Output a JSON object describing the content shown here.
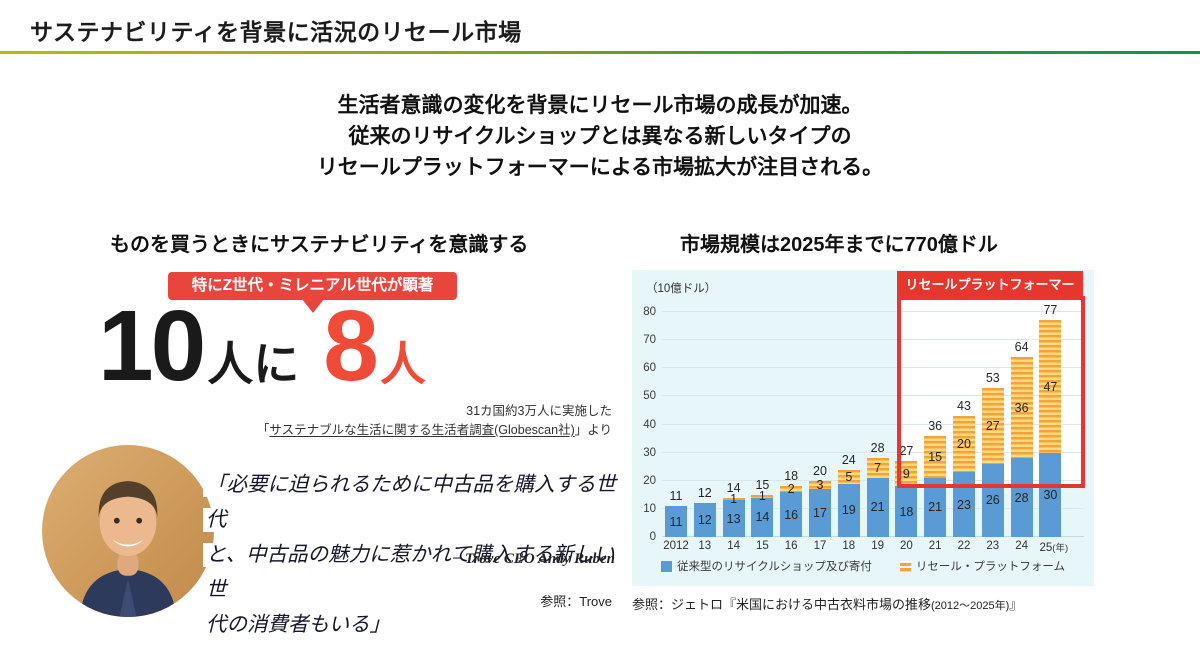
{
  "colors": {
    "accent_red": "#E8453C",
    "box_red": "#E5372E",
    "bar_blue": "#5B9BD5",
    "bar_orange": "#F2A33C",
    "chart_bg": "#E7F6F8",
    "divider_gradient_left": "#C2B70B",
    "divider_gradient_right": "#17914A"
  },
  "header": {
    "title": "サステナビリティを背景に活況のリセール市場"
  },
  "intro_lines": [
    "生活者意識の変化を背景にリセール市場の成長が加速。",
    "従来のリサイクルショップとは異なる新しいタイプの",
    "リセールプラットフォーマーによる市場拡大が注目される。"
  ],
  "left": {
    "heading": "ものを買うときにサステナビリティを意識する",
    "badge": "特にZ世代・ミレニアル世代が顕著",
    "stat": {
      "num1": "10",
      "kana1": "人に",
      "num2": "8",
      "kana2": "人"
    },
    "source_line1": "31カ国約3万人に実施した",
    "source_open": "「",
    "source_link": "サステナブルな生活に関する生活者調査(Globescan社)",
    "source_close": "」より",
    "quote_lines": [
      "「必要に迫られるために中古品を購入する世代",
      "と、中古品の魅力に惹かれて購入する新しい世",
      "代の消費者もいる」"
    ],
    "attribution": "− Trove CEO Andy Ruben",
    "reference": "参照：Trove",
    "photo_alt": "Trove CEO Andy Ruben portrait"
  },
  "right": {
    "heading": "市場規模は2025年までに770億ドル",
    "highlight_badge": "リセールプラットフォーマー",
    "reference_main": "参照：ジェトロ『米国における中古衣料市場の推移",
    "reference_small": "(2012～2025年)",
    "reference_close": "』"
  },
  "chart_data": {
    "type": "bar",
    "stacked": true,
    "title": "市場規模は2025年までに770億ドル",
    "unit_label": "（10億ドル）",
    "categories": [
      "2012",
      "13",
      "14",
      "15",
      "16",
      "17",
      "18",
      "19",
      "20",
      "21",
      "22",
      "23",
      "24",
      "25"
    ],
    "x_axis_suffix": "(年)",
    "ylim": [
      0,
      80
    ],
    "yticks": [
      0,
      10,
      20,
      30,
      40,
      50,
      60,
      70,
      80
    ],
    "grid": true,
    "legend_position": "bottom",
    "series": [
      {
        "name": "従来型のリサイクルショップ及び寄付",
        "color": "#5B9BD5",
        "values": [
          11,
          12,
          13,
          14,
          16,
          17,
          19,
          21,
          18,
          21,
          23,
          26,
          28,
          30
        ]
      },
      {
        "name": "リセール・プラットフォーム",
        "color": "#F2A33C",
        "values": [
          0,
          0,
          1,
          1,
          2,
          3,
          5,
          7,
          9,
          15,
          20,
          27,
          36,
          47
        ]
      }
    ],
    "totals": [
      11,
      12,
      14,
      15,
      18,
      20,
      24,
      28,
      27,
      36,
      43,
      53,
      64,
      77
    ],
    "highlight": {
      "from_category": "21",
      "to_category": "25",
      "label": "リセールプラットフォーマー"
    }
  }
}
